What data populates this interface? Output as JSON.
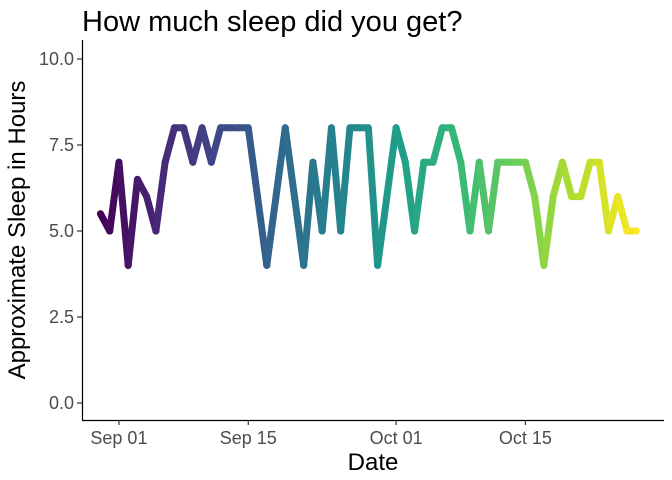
{
  "chart_data": {
    "type": "line",
    "title": "How much sleep did you get?",
    "xlabel": "Date",
    "ylabel": "Approximate Sleep in Hours",
    "ylim": [
      0,
      10
    ],
    "yticks": [
      0,
      2.5,
      5,
      7.5,
      10
    ],
    "ytick_labels": [
      "0.0",
      "2.5",
      "5.0",
      "7.5",
      "10.0"
    ],
    "xticks": [
      "2020-09-01",
      "2020-09-15",
      "2020-10-01",
      "2020-10-15"
    ],
    "xtick_labels": [
      "Sep 01",
      "Sep 15",
      "Oct 01",
      "Oct 15"
    ],
    "xlim": [
      "2020-08-28",
      "2020-10-30"
    ],
    "grid": false,
    "color_scale": "viridis",
    "color_start": "#440154",
    "color_end": "#fde725",
    "x": [
      "2020-08-30",
      "2020-08-31",
      "2020-09-01",
      "2020-09-02",
      "2020-09-03",
      "2020-09-04",
      "2020-09-05",
      "2020-09-06",
      "2020-09-07",
      "2020-09-08",
      "2020-09-09",
      "2020-09-10",
      "2020-09-11",
      "2020-09-12",
      "2020-09-13",
      "2020-09-14",
      "2020-09-15",
      "2020-09-16",
      "2020-09-17",
      "2020-09-18",
      "2020-09-19",
      "2020-09-20",
      "2020-09-21",
      "2020-09-22",
      "2020-09-23",
      "2020-09-24",
      "2020-09-25",
      "2020-09-26",
      "2020-09-27",
      "2020-09-28",
      "2020-09-29",
      "2020-09-30",
      "2020-10-01",
      "2020-10-02",
      "2020-10-03",
      "2020-10-04",
      "2020-10-05",
      "2020-10-06",
      "2020-10-07",
      "2020-10-08",
      "2020-10-09",
      "2020-10-10",
      "2020-10-11",
      "2020-10-12",
      "2020-10-13",
      "2020-10-14",
      "2020-10-15",
      "2020-10-16",
      "2020-10-17",
      "2020-10-18",
      "2020-10-19",
      "2020-10-20",
      "2020-10-21",
      "2020-10-22",
      "2020-10-23",
      "2020-10-24",
      "2020-10-25",
      "2020-10-26",
      "2020-10-27"
    ],
    "values": [
      5.5,
      5,
      7,
      4,
      6.5,
      6,
      5,
      7,
      8,
      8,
      7,
      8,
      7,
      8,
      8,
      8,
      8,
      6,
      4,
      6,
      8,
      6,
      4,
      7,
      5,
      8,
      5,
      8,
      8,
      8,
      4,
      6,
      8,
      7,
      5,
      7,
      7,
      8,
      8,
      7,
      5,
      7,
      5,
      7,
      7,
      7,
      7,
      6,
      4,
      6,
      7,
      6,
      6,
      7,
      7,
      5,
      6,
      5,
      5
    ]
  }
}
